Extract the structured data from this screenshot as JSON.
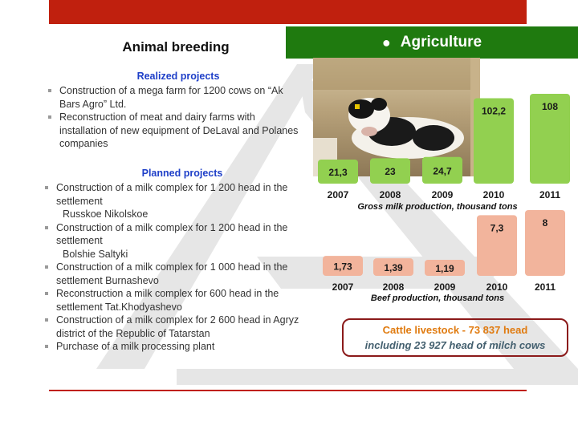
{
  "slide": {
    "section_title": "Animal breeding",
    "banner_title": "Agriculture",
    "colors": {
      "top_bar": "#c0200e",
      "banner": "#1f7a0f",
      "heading_blue": "#1e3fc8",
      "milk_bar": "#92d050",
      "beef_bar": "#f2b49c"
    },
    "photo_icon": "calf-photo"
  },
  "realized": {
    "title": "Realized projects",
    "items": [
      "Construction of a mega farm for 1200 cows on “Ak Bars Agro” Ltd.",
      "Reconstruction of meat and dairy farms with installation of new equipment of DeLaval and Polanes companies"
    ]
  },
  "planned": {
    "title": "Planned projects",
    "items": [
      {
        "text": "Construction of a milk complex for 1 200 head in the settlement",
        "extra": "Russkoe Nikolskoe"
      },
      {
        "text": "Construction of a milk complex for 1 200 head in the settlement",
        "extra": "Bolshie Saltyki"
      },
      {
        "text": "Construction of a milk complex for 1 000 head in the settlement Burnashevo",
        "extra": ""
      },
      {
        "text": "Reconstruction a milk complex for 600 head in the settlement Tat.Khodyashevo",
        "extra": ""
      },
      {
        "text": "Construction of a milk complex for 2 600 head in Agryz district of the Republic of Tatarstan",
        "extra": ""
      },
      {
        "text": "Purchase of a milk processing plant",
        "extra": ""
      }
    ]
  },
  "chart_data": [
    {
      "type": "bar",
      "title": "Gross milk production, thousand tons",
      "categories": [
        "2007",
        "2008",
        "2009",
        "2010",
        "2011"
      ],
      "values": [
        21.3,
        23,
        24.7,
        102.2,
        108
      ],
      "labels": [
        "21,3",
        "23",
        "24,7",
        "102,2",
        "108"
      ],
      "color": "#92d050"
    },
    {
      "type": "bar",
      "title": "Beef production, thousand tons",
      "categories": [
        "2007",
        "2008",
        "2009",
        "2010",
        "2011"
      ],
      "values": [
        1.73,
        1.39,
        1.19,
        7.3,
        8
      ],
      "labels": [
        "1,73",
        "1,39",
        "1,19",
        "7,3",
        "8"
      ],
      "color": "#f2b49c"
    }
  ],
  "livestock": {
    "line1": "Cattle livestock - 73 837 head",
    "line2": "including 23 927  head of milch cows"
  }
}
